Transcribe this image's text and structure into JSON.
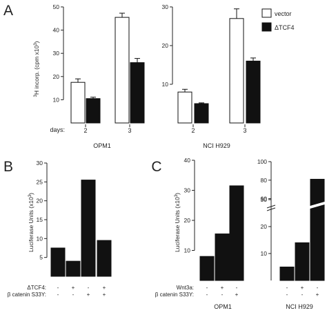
{
  "chart_data": [
    {
      "panel": "A",
      "type": "bar",
      "ylabel": "3H incorp. (cpm x10^3)",
      "x_row_label": "days:",
      "legend": [
        "vector",
        "ΔTCF4"
      ],
      "series_colors": {
        "vector": "#ffffff",
        "ΔTCF4": "#111111"
      },
      "subplots": [
        {
          "cell_line": "OPM1",
          "ylim": [
            0,
            50
          ],
          "yticks": [
            10,
            20,
            30,
            40,
            50
          ],
          "days": [
            "2",
            "3"
          ],
          "series": [
            {
              "name": "vector",
              "values": [
                17.5,
                45.5
              ],
              "errors": [
                1.5,
                1.8
              ]
            },
            {
              "name": "ΔTCF4",
              "values": [
                10.5,
                26
              ],
              "errors": [
                0.6,
                1.8
              ]
            }
          ]
        },
        {
          "cell_line": "NCI H929",
          "ylim": [
            0,
            30
          ],
          "yticks": [
            10,
            20,
            30
          ],
          "days": [
            "2",
            "3"
          ],
          "series": [
            {
              "name": "vector",
              "values": [
                8,
                27
              ],
              "errors": [
                0.7,
                2.5
              ]
            },
            {
              "name": "ΔTCF4",
              "values": [
                5,
                16
              ],
              "errors": [
                0.2,
                0.8
              ]
            }
          ]
        }
      ]
    },
    {
      "panel": "B",
      "type": "bar",
      "ylabel": "Luciferase Units (x10^3)",
      "ylim": [
        0,
        30
      ],
      "yticks": [
        5,
        10,
        15,
        20,
        25,
        30
      ],
      "rows": [
        {
          "label": "ΔTCF4:",
          "values": [
            "-",
            "+",
            "-",
            "+"
          ]
        },
        {
          "label": "β catenin S33Y:",
          "values": [
            "-",
            "-",
            "+",
            "+"
          ]
        }
      ],
      "values": [
        7.5,
        4,
        25.5,
        9.5
      ]
    },
    {
      "panel": "C",
      "type": "bar",
      "ylabel": "Luciferase Units (x10^3)",
      "rows": [
        {
          "label": "Wnt3a:",
          "values": [
            "-",
            "+",
            "-",
            "-",
            "+",
            "-"
          ]
        },
        {
          "label": "β catenin S33Y:",
          "values": [
            "-",
            "-",
            "+",
            "-",
            "-",
            "+"
          ]
        }
      ],
      "subplots": [
        {
          "cell_line": "OPM1",
          "ylim": [
            0,
            40
          ],
          "yticks": [
            10,
            20,
            30,
            40
          ],
          "values": [
            8,
            15.5,
            31.5
          ]
        },
        {
          "cell_line": "NCI H929",
          "yticks": [
            10,
            20,
            30,
            60,
            80,
            100
          ],
          "axis_break": true,
          "values": [
            5,
            14,
            81
          ]
        }
      ]
    }
  ]
}
